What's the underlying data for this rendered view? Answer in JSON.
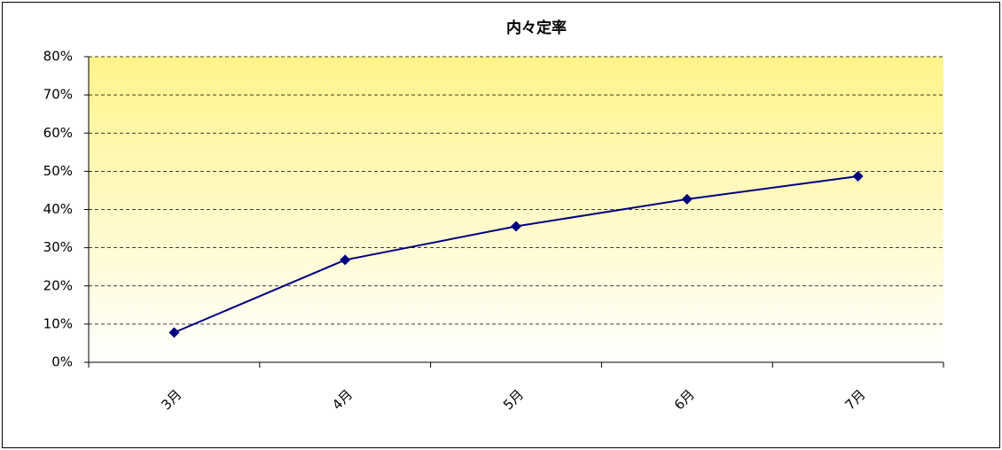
{
  "chart_data": {
    "type": "line",
    "title": "内々定率",
    "categories": [
      "3月",
      "4月",
      "5月",
      "6月",
      "7月"
    ],
    "series": [
      {
        "name": "内々定率",
        "color": "#000080",
        "values": [
          7.8,
          26.8,
          35.6,
          42.7,
          48.7
        ]
      }
    ],
    "ylim": [
      0,
      80
    ],
    "yticks": [
      {
        "value": 0,
        "label": "0%"
      },
      {
        "value": 10,
        "label": "10%"
      },
      {
        "value": 20,
        "label": "20%"
      },
      {
        "value": 30,
        "label": "30%"
      },
      {
        "value": 40,
        "label": "40%"
      },
      {
        "value": 50,
        "label": "50%"
      },
      {
        "value": 60,
        "label": "60%"
      },
      {
        "value": 70,
        "label": "70%"
      },
      {
        "value": 80,
        "label": "80%"
      }
    ],
    "grid": true
  }
}
